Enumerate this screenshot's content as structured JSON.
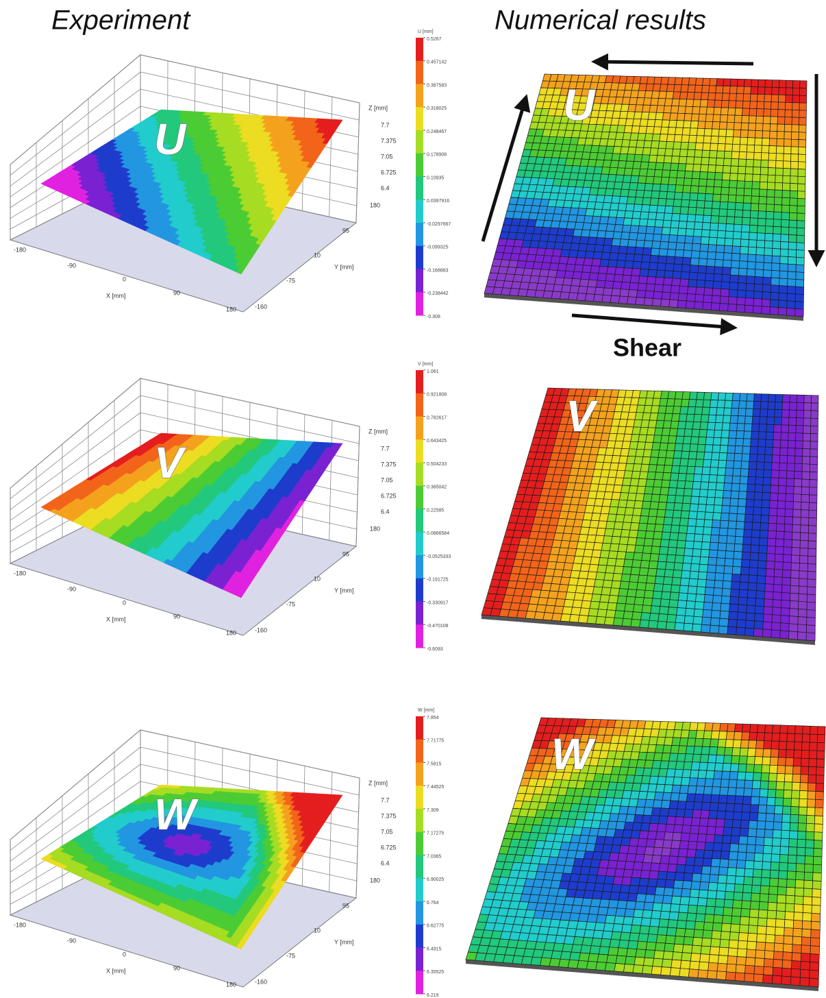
{
  "headers": {
    "left": "Experiment",
    "right": "Numerical results"
  },
  "shear_label": "Shear",
  "rows": [
    {
      "label": "U",
      "colorbar": {
        "title": "U [mm]",
        "values": [
          "0.5267",
          "0.457142",
          "0.387583",
          "0.318025",
          "0.248467",
          "0.178908",
          "0.10935",
          "0.0397916",
          "-0.0297667",
          "-0.099325",
          "-0.168883",
          "-0.238442",
          "-0.308"
        ]
      },
      "z_axis": {
        "title": "Z [mm]",
        "ticks": [
          "7.7",
          "7.375",
          "7.05",
          "6.725",
          "6.4"
        ]
      },
      "y_axis": {
        "title": "Y [mm]",
        "ticks": [
          "180",
          "95",
          "10",
          "-75",
          "-160"
        ]
      },
      "x_axis": {
        "title": "X [mm]",
        "ticks": [
          "-180",
          "-90",
          "0",
          "90",
          "180"
        ]
      }
    },
    {
      "label": "V",
      "colorbar": {
        "title": "V [mm]",
        "values": [
          "1.061",
          "0.921808",
          "0.782617",
          "0.643425",
          "0.504233",
          "0.365042",
          "0.22585",
          "0.0866584",
          "-0.0525333",
          "-0.191725",
          "-0.330917",
          "-0.470108",
          "-0.6093"
        ]
      },
      "z_axis": {
        "title": "Z [mm]",
        "ticks": [
          "7.7",
          "7.375",
          "7.05",
          "6.725",
          "6.4"
        ]
      },
      "y_axis": {
        "title": "Y [mm]",
        "ticks": [
          "180",
          "95",
          "10",
          "-75",
          "-160"
        ]
      },
      "x_axis": {
        "title": "X [mm]",
        "ticks": [
          "-180",
          "-90",
          "0",
          "90",
          "180"
        ]
      }
    },
    {
      "label": "W",
      "colorbar": {
        "title": "W [mm]",
        "values": [
          "7.854",
          "7.71775",
          "7.5815",
          "7.44525",
          "7.309",
          "7.17275",
          "7.0365",
          "6.90025",
          "6.764",
          "6.62775",
          "6.4915",
          "6.35525",
          "6.219"
        ]
      },
      "z_axis": {
        "title": "Z [mm]",
        "ticks": [
          "7.7",
          "7.375",
          "7.05",
          "6.725",
          "6.4"
        ]
      },
      "y_axis": {
        "title": "Y [mm]",
        "ticks": [
          "180",
          "95",
          "10",
          "-75",
          "-160"
        ]
      },
      "x_axis": {
        "title": "X [mm]",
        "ticks": [
          "-180",
          "-90",
          "0",
          "90",
          "180"
        ]
      }
    }
  ]
}
